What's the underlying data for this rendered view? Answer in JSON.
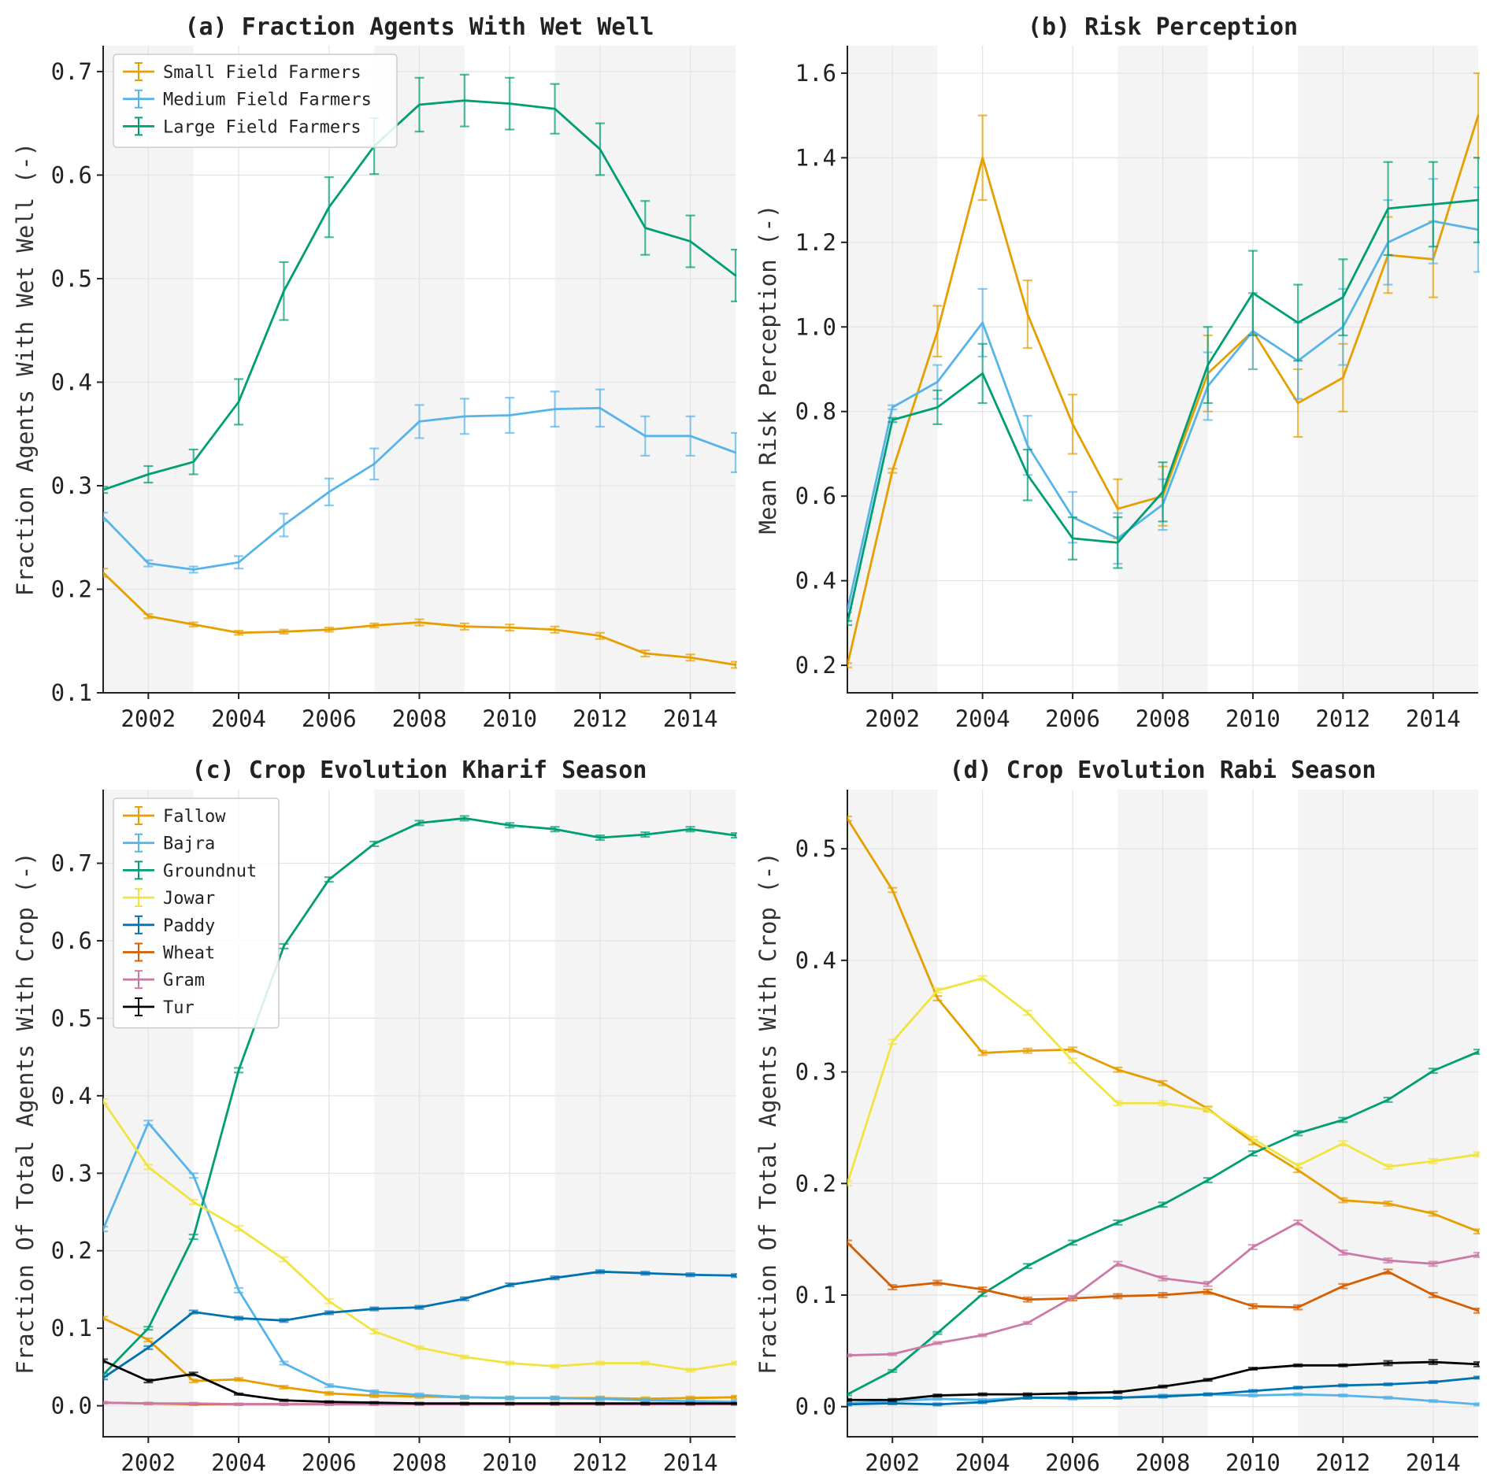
{
  "colors": {
    "orange": "#E69F00",
    "skyblue": "#56B4E9",
    "green": "#009E73",
    "yellow": "#F0E442",
    "blue": "#0072B2",
    "vermillion": "#D55E00",
    "pink": "#CC79A7",
    "black": "#000000",
    "band": "#f4f4f4",
    "grid": "#e3e3e3"
  },
  "shaded_periods": [
    [
      2001,
      2003
    ],
    [
      2007,
      2009
    ],
    [
      2011,
      2015
    ]
  ],
  "chart_data": [
    {
      "id": "a",
      "type": "line",
      "title": "(a) Fraction Agents With Wet Well",
      "xlabel": "",
      "ylabel": "Fraction Agents With Wet Well (-)",
      "xlim": [
        2001,
        2015
      ],
      "ylim": [
        0.1,
        0.725
      ],
      "xticks": [
        2002,
        2004,
        2006,
        2008,
        2010,
        2012,
        2014
      ],
      "yticks": [
        0.1,
        0.2,
        0.3,
        0.4,
        0.5,
        0.6,
        0.7
      ],
      "ytick_labels": [
        "0.1",
        "0.2",
        "0.3",
        "0.4",
        "0.5",
        "0.6",
        "0.7"
      ],
      "legend": "top-left",
      "x": [
        2001,
        2002,
        2003,
        2004,
        2005,
        2006,
        2007,
        2008,
        2009,
        2010,
        2011,
        2012,
        2013,
        2014,
        2015
      ],
      "series": [
        {
          "name": "Small Field Farmers",
          "color": "orange",
          "values": [
            0.216,
            0.174,
            0.166,
            0.158,
            0.159,
            0.161,
            0.165,
            0.168,
            0.164,
            0.163,
            0.161,
            0.155,
            0.138,
            0.134,
            0.127
          ],
          "errors": [
            0.004,
            0.002,
            0.002,
            0.002,
            0.002,
            0.002,
            0.002,
            0.003,
            0.003,
            0.003,
            0.003,
            0.003,
            0.003,
            0.003,
            0.003
          ]
        },
        {
          "name": "Medium Field Farmers",
          "color": "skyblue",
          "values": [
            0.27,
            0.225,
            0.219,
            0.226,
            0.262,
            0.294,
            0.321,
            0.362,
            0.367,
            0.368,
            0.374,
            0.375,
            0.348,
            0.348,
            0.332
          ],
          "errors": [
            0.004,
            0.003,
            0.003,
            0.006,
            0.011,
            0.013,
            0.015,
            0.016,
            0.017,
            0.017,
            0.017,
            0.018,
            0.019,
            0.019,
            0.019
          ]
        },
        {
          "name": "Large Field Farmers",
          "color": "green",
          "values": [
            0.296,
            0.311,
            0.323,
            0.381,
            0.488,
            0.569,
            0.628,
            0.668,
            0.672,
            0.669,
            0.664,
            0.625,
            0.549,
            0.536,
            0.503
          ],
          "errors": [
            0.003,
            0.008,
            0.012,
            0.022,
            0.028,
            0.029,
            0.027,
            0.026,
            0.025,
            0.025,
            0.024,
            0.025,
            0.026,
            0.025,
            0.025
          ]
        }
      ]
    },
    {
      "id": "b",
      "type": "line",
      "title": "(b) Risk Perception",
      "xlabel": "",
      "ylabel": "Mean Risk Perception (-)",
      "xlim": [
        2001,
        2015
      ],
      "ylim": [
        0.135,
        1.665
      ],
      "xticks": [
        2002,
        2004,
        2006,
        2008,
        2010,
        2012,
        2014
      ],
      "yticks": [
        0.2,
        0.4,
        0.6,
        0.8,
        1.0,
        1.2,
        1.4,
        1.6
      ],
      "ytick_labels": [
        "0.2",
        "0.4",
        "0.6",
        "0.8",
        "1.0",
        "1.2",
        "1.4",
        "1.6"
      ],
      "legend": "none",
      "x": [
        2001,
        2002,
        2003,
        2004,
        2005,
        2006,
        2007,
        2008,
        2009,
        2010,
        2011,
        2012,
        2013,
        2014,
        2015
      ],
      "series": [
        {
          "name": "Small Field Farmers",
          "color": "orange",
          "values": [
            0.2,
            0.66,
            0.99,
            1.4,
            1.03,
            0.77,
            0.57,
            0.6,
            0.89,
            0.99,
            0.82,
            0.88,
            1.17,
            1.16,
            1.5
          ],
          "errors": [
            0.005,
            0.005,
            0.06,
            0.1,
            0.08,
            0.07,
            0.07,
            0.07,
            0.09,
            0.09,
            0.08,
            0.08,
            0.09,
            0.09,
            0.1
          ]
        },
        {
          "name": "Medium Field Farmers",
          "color": "skyblue",
          "values": [
            0.33,
            0.81,
            0.87,
            1.01,
            0.72,
            0.55,
            0.5,
            0.58,
            0.86,
            0.99,
            0.92,
            1.0,
            1.2,
            1.25,
            1.23
          ],
          "errors": [
            0.005,
            0.005,
            0.04,
            0.08,
            0.07,
            0.06,
            0.06,
            0.06,
            0.08,
            0.09,
            0.09,
            0.09,
            0.1,
            0.1,
            0.1
          ]
        },
        {
          "name": "Large Field Farmers",
          "color": "green",
          "values": [
            0.3,
            0.78,
            0.81,
            0.89,
            0.65,
            0.5,
            0.49,
            0.61,
            0.91,
            1.08,
            1.01,
            1.07,
            1.28,
            1.29,
            1.3
          ],
          "errors": [
            0.005,
            0.005,
            0.04,
            0.07,
            0.06,
            0.05,
            0.06,
            0.07,
            0.09,
            0.1,
            0.09,
            0.09,
            0.11,
            0.1,
            0.1
          ]
        }
      ]
    },
    {
      "id": "c",
      "type": "line",
      "title": "(c) Crop Evolution Kharif Season",
      "xlabel": "",
      "ylabel": "Fraction Of Total Agents With Crop (-)",
      "xlim": [
        2001,
        2015
      ],
      "ylim": [
        -0.04,
        0.795
      ],
      "xticks": [
        2002,
        2004,
        2006,
        2008,
        2010,
        2012,
        2014
      ],
      "yticks": [
        0.0,
        0.1,
        0.2,
        0.3,
        0.4,
        0.5,
        0.6,
        0.7
      ],
      "ytick_labels": [
        "0.0",
        "0.1",
        "0.2",
        "0.3",
        "0.4",
        "0.5",
        "0.6",
        "0.7"
      ],
      "legend": "top-left",
      "x": [
        2001,
        2002,
        2003,
        2004,
        2005,
        2006,
        2007,
        2008,
        2009,
        2010,
        2011,
        2012,
        2013,
        2014,
        2015
      ],
      "series": [
        {
          "name": "Fallow",
          "color": "orange",
          "values": [
            0.113,
            0.085,
            0.032,
            0.034,
            0.024,
            0.016,
            0.013,
            0.012,
            0.011,
            0.01,
            0.01,
            0.01,
            0.009,
            0.01,
            0.011
          ],
          "errors": [
            0.002,
            0.002,
            0.002,
            0.002,
            0.002,
            0.002,
            0.002,
            0.002,
            0.002,
            0.002,
            0.002,
            0.002,
            0.002,
            0.002,
            0.002
          ]
        },
        {
          "name": "Bajra",
          "color": "skyblue",
          "values": [
            0.228,
            0.365,
            0.297,
            0.149,
            0.055,
            0.026,
            0.018,
            0.014,
            0.011,
            0.01,
            0.01,
            0.009,
            0.007,
            0.006,
            0.005
          ],
          "errors": [
            0.003,
            0.003,
            0.003,
            0.003,
            0.002,
            0.002,
            0.002,
            0.002,
            0.002,
            0.002,
            0.002,
            0.002,
            0.002,
            0.002,
            0.002
          ]
        },
        {
          "name": "Groundnut",
          "color": "green",
          "values": [
            0.04,
            0.1,
            0.218,
            0.433,
            0.593,
            0.679,
            0.725,
            0.752,
            0.758,
            0.749,
            0.744,
            0.733,
            0.737,
            0.744,
            0.736
          ],
          "errors": [
            0.002,
            0.002,
            0.003,
            0.003,
            0.003,
            0.003,
            0.003,
            0.003,
            0.003,
            0.003,
            0.003,
            0.003,
            0.003,
            0.003,
            0.003
          ]
        },
        {
          "name": "Jowar",
          "color": "yellow",
          "values": [
            0.393,
            0.308,
            0.263,
            0.229,
            0.189,
            0.135,
            0.096,
            0.075,
            0.063,
            0.055,
            0.051,
            0.055,
            0.055,
            0.046,
            0.055
          ],
          "errors": [
            0.003,
            0.003,
            0.003,
            0.003,
            0.003,
            0.003,
            0.003,
            0.002,
            0.002,
            0.002,
            0.002,
            0.002,
            0.002,
            0.002,
            0.002
          ]
        },
        {
          "name": "Paddy",
          "color": "blue",
          "values": [
            0.036,
            0.075,
            0.121,
            0.113,
            0.11,
            0.12,
            0.125,
            0.127,
            0.138,
            0.156,
            0.165,
            0.173,
            0.171,
            0.169,
            0.168
          ],
          "errors": [
            0.002,
            0.002,
            0.002,
            0.002,
            0.002,
            0.002,
            0.002,
            0.002,
            0.002,
            0.002,
            0.002,
            0.002,
            0.002,
            0.002,
            0.002
          ]
        },
        {
          "name": "Wheat",
          "color": "vermillion",
          "values": [
            0.004,
            0.003,
            0.002,
            0.002,
            0.002,
            0.002,
            0.002,
            0.002,
            0.002,
            0.002,
            0.002,
            0.002,
            0.002,
            0.002,
            0.002
          ],
          "errors": [
            0.001,
            0.001,
            0.001,
            0.001,
            0.001,
            0.001,
            0.001,
            0.001,
            0.001,
            0.001,
            0.001,
            0.001,
            0.001,
            0.001,
            0.001
          ]
        },
        {
          "name": "Gram",
          "color": "pink",
          "values": [
            0.004,
            0.003,
            0.003,
            0.002,
            0.002,
            0.002,
            0.002,
            0.002,
            0.002,
            0.002,
            0.002,
            0.002,
            0.002,
            0.002,
            0.002
          ],
          "errors": [
            0.001,
            0.001,
            0.001,
            0.001,
            0.001,
            0.001,
            0.001,
            0.001,
            0.001,
            0.001,
            0.001,
            0.001,
            0.001,
            0.001,
            0.001
          ]
        },
        {
          "name": "Tur",
          "color": "black",
          "values": [
            0.058,
            0.032,
            0.041,
            0.015,
            0.007,
            0.005,
            0.004,
            0.003,
            0.003,
            0.003,
            0.003,
            0.003,
            0.003,
            0.003,
            0.003
          ],
          "errors": [
            0.002,
            0.002,
            0.002,
            0.001,
            0.001,
            0.001,
            0.001,
            0.001,
            0.001,
            0.001,
            0.001,
            0.001,
            0.001,
            0.001,
            0.001
          ]
        }
      ]
    },
    {
      "id": "d",
      "type": "line",
      "title": "(d) Crop Evolution Rabi Season",
      "xlabel": "",
      "ylabel": "Fraction Of Total Agents With Crop (-)",
      "xlim": [
        2001,
        2015
      ],
      "ylim": [
        -0.027,
        0.553
      ],
      "xticks": [
        2002,
        2004,
        2006,
        2008,
        2010,
        2012,
        2014
      ],
      "yticks": [
        0.0,
        0.1,
        0.2,
        0.3,
        0.4,
        0.5
      ],
      "ytick_labels": [
        "0.0",
        "0.1",
        "0.2",
        "0.3",
        "0.4",
        "0.5"
      ],
      "legend": "none",
      "x": [
        2001,
        2002,
        2003,
        2004,
        2005,
        2006,
        2007,
        2008,
        2009,
        2010,
        2011,
        2012,
        2013,
        2014,
        2015
      ],
      "series": [
        {
          "name": "Fallow",
          "color": "orange",
          "values": [
            0.527,
            0.463,
            0.366,
            0.317,
            0.319,
            0.32,
            0.302,
            0.29,
            0.267,
            0.237,
            0.212,
            0.185,
            0.182,
            0.173,
            0.157
          ],
          "errors": [
            0.002,
            0.002,
            0.002,
            0.002,
            0.002,
            0.002,
            0.002,
            0.002,
            0.002,
            0.002,
            0.002,
            0.002,
            0.002,
            0.002,
            0.002
          ]
        },
        {
          "name": "Bajra",
          "color": "skyblue",
          "values": [
            0.003,
            0.005,
            0.007,
            0.006,
            0.008,
            0.007,
            0.008,
            0.01,
            0.011,
            0.01,
            0.011,
            0.01,
            0.008,
            0.005,
            0.002
          ],
          "errors": [
            0.001,
            0.001,
            0.001,
            0.001,
            0.001,
            0.001,
            0.001,
            0.001,
            0.001,
            0.001,
            0.001,
            0.001,
            0.001,
            0.001,
            0.001
          ]
        },
        {
          "name": "Groundnut",
          "color": "green",
          "values": [
            0.011,
            0.032,
            0.066,
            0.101,
            0.126,
            0.147,
            0.165,
            0.181,
            0.203,
            0.227,
            0.245,
            0.257,
            0.275,
            0.301,
            0.318
          ],
          "errors": [
            0.001,
            0.001,
            0.001,
            0.002,
            0.002,
            0.002,
            0.002,
            0.002,
            0.002,
            0.002,
            0.002,
            0.002,
            0.002,
            0.002,
            0.002
          ]
        },
        {
          "name": "Jowar",
          "color": "yellow",
          "values": [
            0.2,
            0.327,
            0.373,
            0.384,
            0.353,
            0.31,
            0.272,
            0.272,
            0.266,
            0.24,
            0.216,
            0.236,
            0.215,
            0.22,
            0.226
          ],
          "errors": [
            0.002,
            0.002,
            0.002,
            0.002,
            0.002,
            0.002,
            0.002,
            0.002,
            0.002,
            0.002,
            0.002,
            0.002,
            0.002,
            0.002,
            0.002
          ]
        },
        {
          "name": "Paddy",
          "color": "blue",
          "values": [
            0.002,
            0.003,
            0.002,
            0.004,
            0.008,
            0.008,
            0.008,
            0.009,
            0.011,
            0.014,
            0.017,
            0.019,
            0.02,
            0.022,
            0.026
          ],
          "errors": [
            0.001,
            0.001,
            0.001,
            0.001,
            0.001,
            0.001,
            0.001,
            0.001,
            0.001,
            0.001,
            0.001,
            0.001,
            0.001,
            0.001,
            0.001
          ]
        },
        {
          "name": "Wheat",
          "color": "vermillion",
          "values": [
            0.147,
            0.107,
            0.111,
            0.105,
            0.096,
            0.097,
            0.099,
            0.1,
            0.103,
            0.09,
            0.089,
            0.108,
            0.121,
            0.1,
            0.086
          ],
          "errors": [
            0.002,
            0.002,
            0.002,
            0.002,
            0.002,
            0.002,
            0.002,
            0.002,
            0.002,
            0.002,
            0.002,
            0.002,
            0.002,
            0.002,
            0.002
          ]
        },
        {
          "name": "Gram",
          "color": "pink",
          "values": [
            0.046,
            0.047,
            0.057,
            0.064,
            0.075,
            0.098,
            0.128,
            0.115,
            0.11,
            0.143,
            0.165,
            0.138,
            0.131,
            0.128,
            0.136
          ],
          "errors": [
            0.001,
            0.001,
            0.001,
            0.001,
            0.001,
            0.001,
            0.002,
            0.002,
            0.002,
            0.002,
            0.002,
            0.002,
            0.002,
            0.002,
            0.002
          ]
        },
        {
          "name": "Tur",
          "color": "black",
          "values": [
            0.006,
            0.006,
            0.01,
            0.011,
            0.011,
            0.012,
            0.013,
            0.018,
            0.024,
            0.034,
            0.037,
            0.037,
            0.039,
            0.04,
            0.038
          ],
          "errors": [
            0.001,
            0.001,
            0.001,
            0.001,
            0.001,
            0.001,
            0.001,
            0.001,
            0.001,
            0.001,
            0.001,
            0.001,
            0.002,
            0.002,
            0.002
          ]
        }
      ]
    }
  ]
}
